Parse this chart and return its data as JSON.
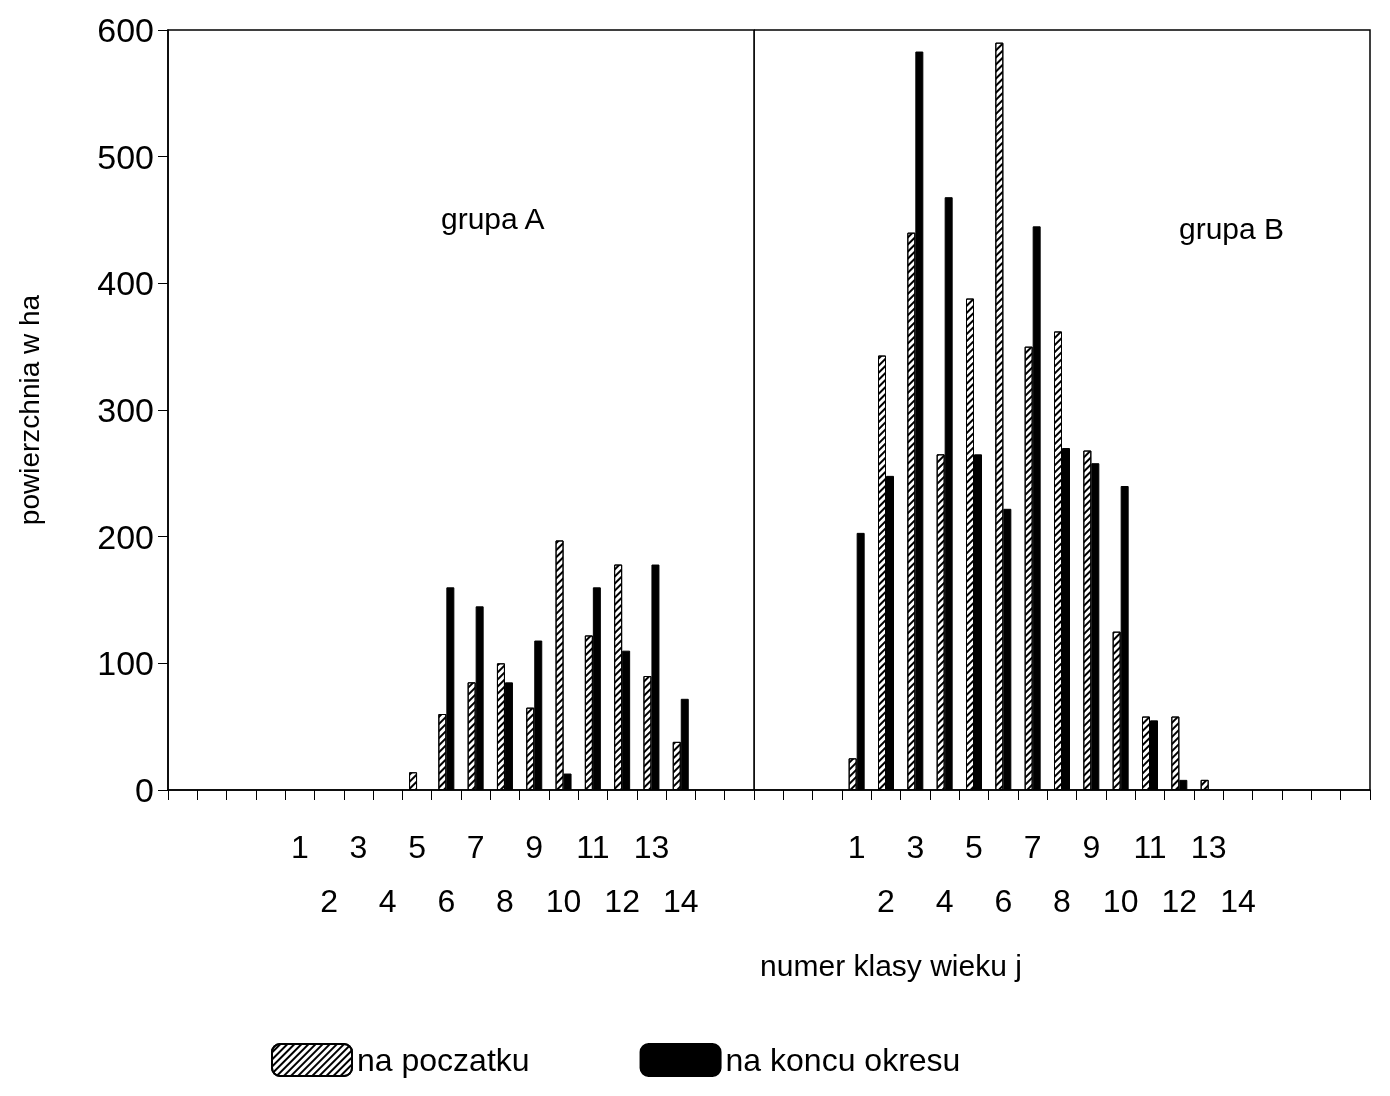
{
  "chart_data": [
    {
      "type": "bar",
      "title": "grupa A",
      "xlabel": "numer klasy wieku j",
      "ylabel": "powierzchnia w ha",
      "categories": [
        null,
        null,
        null,
        null,
        "1",
        "2",
        "3",
        "4",
        "5",
        "6",
        "7",
        "8",
        "9",
        "10",
        "11",
        "12",
        "13",
        "14",
        null,
        null
      ],
      "series": [
        {
          "name": "na poczatku",
          "color": "#ffffff",
          "values": [
            null,
            null,
            null,
            null,
            null,
            null,
            null,
            null,
            14,
            60,
            85,
            100,
            65,
            197,
            122,
            178,
            90,
            38,
            null,
            null
          ]
        },
        {
          "name": "na koncu okresu",
          "color": "#000000",
          "values": [
            null,
            null,
            null,
            null,
            null,
            null,
            null,
            null,
            null,
            160,
            145,
            85,
            118,
            13,
            160,
            110,
            178,
            72,
            null,
            null
          ]
        }
      ],
      "ylim": [
        0,
        600
      ],
      "yticks": [
        0,
        100,
        200,
        300,
        400,
        500,
        600
      ],
      "grid": false,
      "legend": "bottom"
    },
    {
      "type": "bar",
      "title": "grupa B",
      "categories": [
        null,
        null,
        null,
        "1",
        "2",
        "3",
        "4",
        "5",
        "6",
        "7",
        "8",
        "9",
        "10",
        "11",
        "12",
        "13",
        "14",
        null,
        null,
        null,
        null
      ],
      "series": [
        {
          "color": "#ffffff",
          "values": [
            null,
            null,
            null,
            25,
            343,
            440,
            265,
            388,
            590,
            350,
            362,
            268,
            125,
            58,
            58,
            8,
            null,
            null,
            null,
            null,
            null
          ]
        },
        {
          "color": "#000000",
          "values": [
            null,
            null,
            null,
            203,
            248,
            583,
            468,
            265,
            222,
            445,
            270,
            258,
            240,
            55,
            8,
            null,
            null,
            null,
            null,
            null,
            null
          ]
        }
      ],
      "ylim": [
        0,
        600
      ],
      "yticks": [
        0,
        100,
        200,
        300,
        400,
        500,
        600
      ],
      "grid": false,
      "legend": false,
      "tick_labels": "x"
    }
  ]
}
